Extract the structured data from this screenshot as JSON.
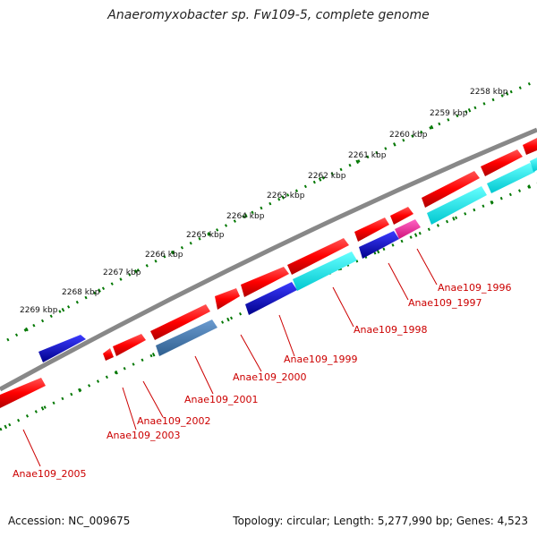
{
  "title": "Anaeromyxobacter sp. Fw109-5, complete genome",
  "footer": {
    "accession_label": "Accession:",
    "accession": "NC_009675",
    "topology_label": "Topology:",
    "topology": "circular",
    "length_label": "Length:",
    "length": "5,277,990 bp",
    "genes_label": "Genes:",
    "genes": "4,523"
  },
  "ruler_labels": [
    "2258 kbp",
    "2259 kbp",
    "2260 kbp",
    "2261 kbp",
    "2262 kbp",
    "2263 kbp",
    "2264 kbp",
    "2265 kbp",
    "2266 kbp",
    "2267 kbp",
    "2268 kbp",
    "2269 kbp"
  ],
  "gene_labels": [
    "Anae109_1996",
    "Anae109_1997",
    "Anae109_1998",
    "Anae109_1999",
    "Anae109_2000",
    "Anae109_2001",
    "Anae109_2002",
    "Anae109_2003",
    "Anae109_2005"
  ],
  "colors": {
    "forward_gene": "#ff0000",
    "reverse_gene": "#ff0000",
    "blue_gene": "#0000dd",
    "cyan_gene": "#00e5ee",
    "steel_gene": "#4682b4",
    "magenta_gene": "#ff1493",
    "backbone": "#888888",
    "ruler": "#007700",
    "label": "#cc0000"
  }
}
